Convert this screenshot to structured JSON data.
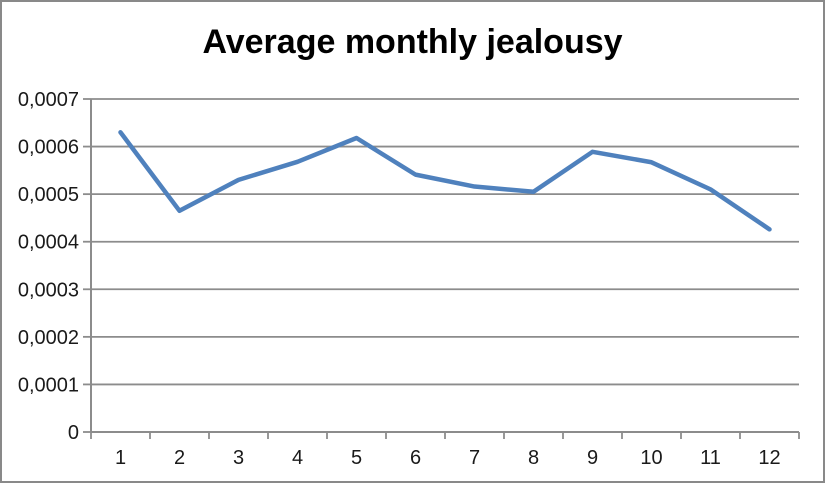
{
  "window": {
    "background": "#FFFFFF",
    "border_color": "#898989"
  },
  "chart_data": {
    "type": "line",
    "title": "Average monthly jealousy",
    "categories": [
      "1",
      "2",
      "3",
      "4",
      "5",
      "6",
      "7",
      "8",
      "9",
      "10",
      "11",
      "12"
    ],
    "values": [
      0.00063,
      0.000465,
      0.00053,
      0.000568,
      0.000618,
      0.000541,
      0.000516,
      0.000505,
      0.000589,
      0.000567,
      0.00051,
      0.000426
    ],
    "xlabel": "",
    "ylabel": "",
    "ylim": [
      0,
      0.0007
    ],
    "ytick_step": 0.0001,
    "ytick_labels": [
      "0",
      "0,0001",
      "0,0002",
      "0,0003",
      "0,0004",
      "0,0005",
      "0,0006",
      "0,0007"
    ],
    "grid": true,
    "legend": "none",
    "line_color": "#4F81BD",
    "gridline_color": "#8C8C8C",
    "axis_color": "#8C8C8C",
    "label_color": "#1A1A1A",
    "title_color": "#000000"
  }
}
